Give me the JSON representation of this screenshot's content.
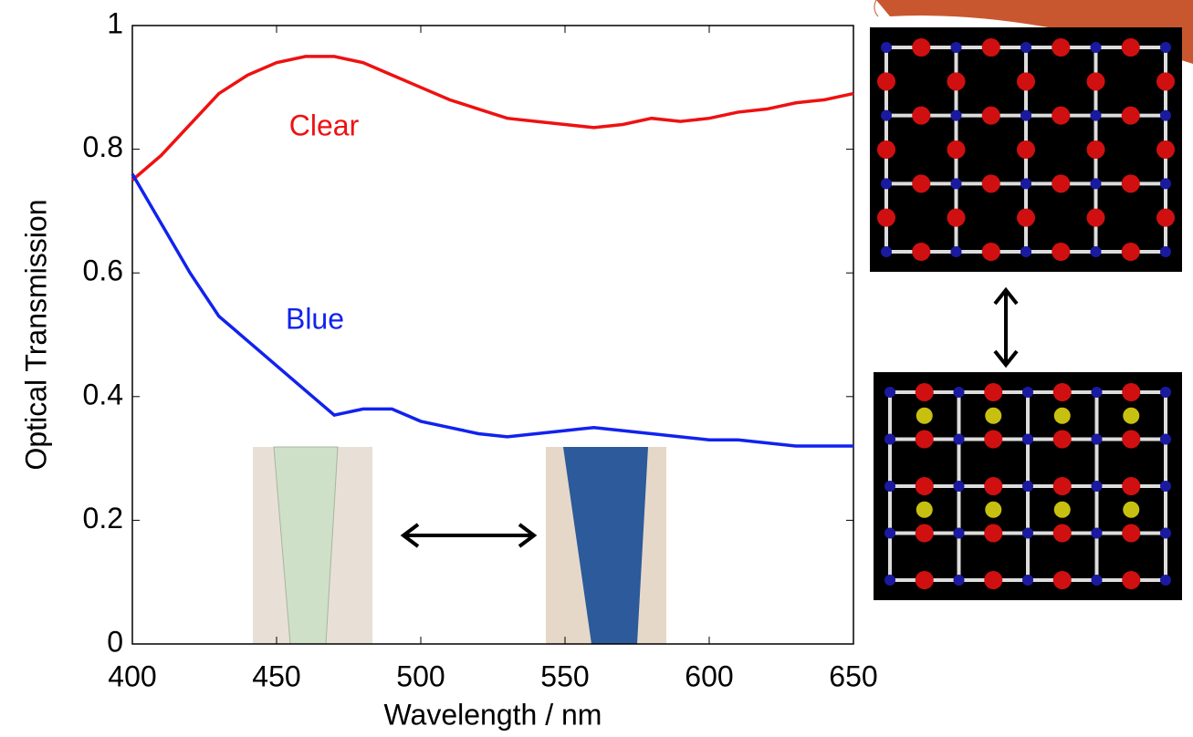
{
  "chart_data": {
    "type": "line",
    "x_label": "Wavelength / nm",
    "y_label": "Optical Transmission",
    "xlim": [
      400,
      650
    ],
    "ylim": [
      0,
      1
    ],
    "xticks": [
      400,
      450,
      500,
      550,
      600,
      650
    ],
    "yticks": [
      0,
      0.2,
      0.4,
      0.6,
      0.8,
      1
    ],
    "x": [
      400,
      410,
      420,
      430,
      440,
      450,
      460,
      470,
      480,
      490,
      500,
      510,
      520,
      530,
      540,
      550,
      560,
      570,
      580,
      590,
      600,
      610,
      620,
      630,
      640,
      650
    ],
    "series": [
      {
        "name": "Clear",
        "color": "#ee1111",
        "values": [
          0.75,
          0.79,
          0.84,
          0.89,
          0.92,
          0.94,
          0.95,
          0.95,
          0.94,
          0.92,
          0.9,
          0.88,
          0.865,
          0.85,
          0.845,
          0.84,
          0.835,
          0.84,
          0.85,
          0.845,
          0.85,
          0.86,
          0.865,
          0.875,
          0.88,
          0.89
        ]
      },
      {
        "name": "Blue",
        "color": "#1122ee",
        "values": [
          0.76,
          0.68,
          0.6,
          0.53,
          0.49,
          0.45,
          0.41,
          0.37,
          0.38,
          0.38,
          0.36,
          0.35,
          0.34,
          0.335,
          0.34,
          0.345,
          0.35,
          0.345,
          0.34,
          0.335,
          0.33,
          0.33,
          0.325,
          0.32,
          0.32,
          0.32
        ]
      }
    ]
  }
}
